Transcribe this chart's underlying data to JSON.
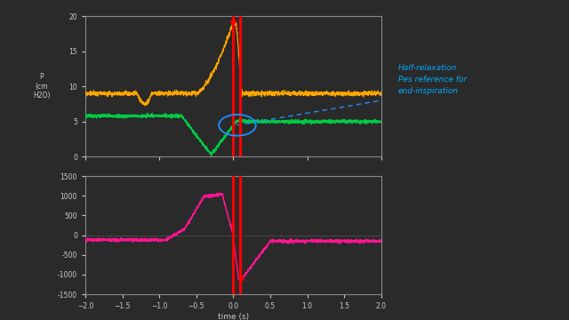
{
  "fig_bg": "#2a2a2a",
  "axes_bg": "#2a2a2a",
  "top_panel": {
    "ylim": [
      0,
      20
    ],
    "yticks": [
      0,
      5,
      10,
      15,
      20
    ],
    "ylabel": "P\n(cm\nH2O)"
  },
  "bottom_panel": {
    "ylim": [
      -1500,
      1500
    ],
    "yticks": [
      -1500,
      -1000,
      -500,
      0,
      500,
      1000,
      1500
    ],
    "xlabel": "time (s)"
  },
  "annotation_text": "Half-relaxation\nPes reference for\nend-inspiration",
  "annotation_color": "#00aaff",
  "annotation_fontsize": 6.5,
  "orange_color": "#FFA500",
  "green_color": "#00CC44",
  "blue_color": "#1E90FF",
  "magenta_color": "#FF1493",
  "red_color": "#FF0000",
  "spine_color": "#888888",
  "tick_color": "#cccccc",
  "zero_line_color": "#888888"
}
